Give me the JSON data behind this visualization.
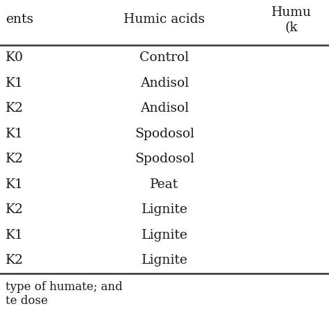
{
  "col0_header": "ents",
  "col1_header": "Humic acids",
  "col2_header_line1": "Humu",
  "col2_header_line2": "(k",
  "rows": [
    [
      "K0",
      "Control"
    ],
    [
      "K1",
      "Andisol"
    ],
    [
      "K2",
      "Andisol"
    ],
    [
      "K1",
      "Spodosol"
    ],
    [
      "K2",
      "Spodosol"
    ],
    [
      "K1",
      "Peat"
    ],
    [
      "K2",
      "Lignite"
    ],
    [
      "K1",
      "Lignite"
    ],
    [
      "K2",
      "Lignite"
    ]
  ],
  "footnote1": "type of humate; and",
  "footnote2": "te dose",
  "bg_color": "#ffffff",
  "text_color": "#1a1a1a",
  "line_color": "#333333",
  "font_size": 13.5,
  "header_font_size": 13.5
}
